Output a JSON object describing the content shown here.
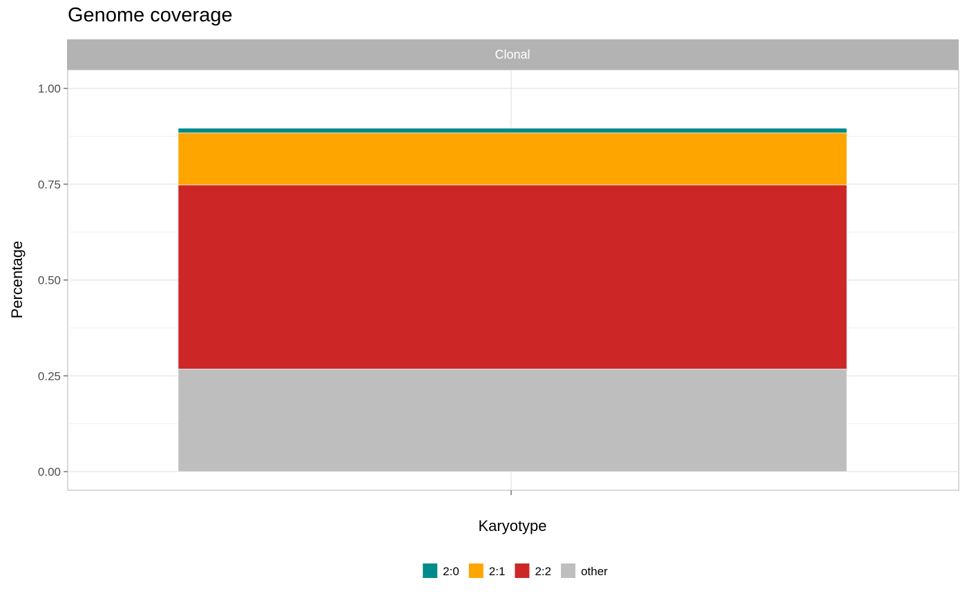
{
  "chart_data": {
    "type": "bar",
    "stacked": true,
    "title": "Genome coverage",
    "facet_label": "Clonal",
    "xlabel": "Karyotype",
    "ylabel": "Percentage",
    "ylim": [
      0,
      1.05
    ],
    "y_ticks": [
      "0.00",
      "0.25",
      "0.50",
      "0.75",
      "1.00"
    ],
    "y_tick_values": [
      0,
      0.25,
      0.5,
      0.75,
      1.0
    ],
    "grid": true,
    "legend_position": "bottom",
    "categories": [
      ""
    ],
    "series": [
      {
        "name": "other",
        "values": [
          0.268
        ],
        "color": "#BEBEBE"
      },
      {
        "name": "2:2",
        "values": [
          0.48
        ],
        "color": "#CD2626"
      },
      {
        "name": "2:1",
        "values": [
          0.136
        ],
        "color": "#FFA500"
      },
      {
        "name": "2:0",
        "values": [
          0.012
        ],
        "color": "#008B8B"
      }
    ],
    "legend": [
      {
        "name": "2:0",
        "color": "#008B8B"
      },
      {
        "name": "2:1",
        "color": "#FFA500"
      },
      {
        "name": "2:2",
        "color": "#CD2626"
      },
      {
        "name": "other",
        "color": "#BEBEBE"
      }
    ]
  }
}
